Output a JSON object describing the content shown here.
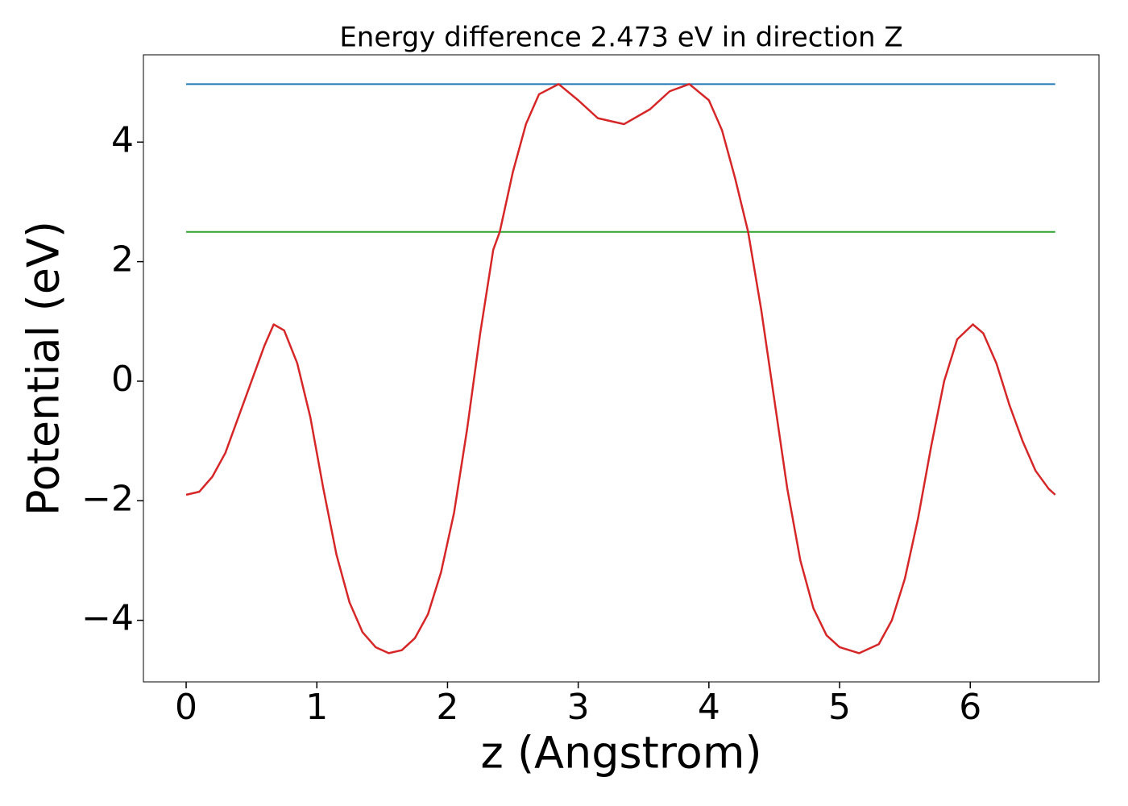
{
  "chart_data": {
    "type": "line",
    "title": "Energy difference 2.473 eV in direction Z",
    "xlabel": "z (Angstrom)",
    "ylabel": "Potential (eV)",
    "xlim": [
      -0.327,
      6.985
    ],
    "ylim": [
      -5.03,
      5.46
    ],
    "xticks": [
      0,
      1,
      2,
      3,
      4,
      5,
      6
    ],
    "yticks": [
      {
        "value": -4,
        "label": "−4"
      },
      {
        "value": -2,
        "label": "−2"
      },
      0,
      2,
      4
    ],
    "series": [
      {
        "color": "#1f77b4",
        "x": [
          0,
          6.65
        ],
        "values": [
          4.97,
          4.97
        ]
      },
      {
        "color": "#2ca02c",
        "x": [
          0,
          6.65
        ],
        "values": [
          2.497,
          2.497
        ]
      },
      {
        "color": "#d62728",
        "x": [
          0,
          0.1,
          0.2,
          0.3,
          0.4,
          0.5,
          0.6,
          0.67,
          0.75,
          0.85,
          0.95,
          1.05,
          1.15,
          1.25,
          1.35,
          1.45,
          1.55,
          1.65,
          1.75,
          1.85,
          1.95,
          2.05,
          2.15,
          2.25,
          2.35,
          2.4,
          2.5,
          2.6,
          2.7,
          2.85,
          3.0,
          3.15,
          3.35,
          3.55,
          3.7,
          3.85,
          4.0,
          4.1,
          4.2,
          4.3,
          4.4,
          4.5,
          4.6,
          4.7,
          4.8,
          4.9,
          5.0,
          5.15,
          5.3,
          5.4,
          5.5,
          5.6,
          5.7,
          5.8,
          5.9,
          6.02,
          6.1,
          6.2,
          6.3,
          6.4,
          6.5,
          6.6,
          6.65
        ],
        "values": [
          -1.9,
          -1.85,
          -1.6,
          -1.2,
          -0.6,
          0.0,
          0.6,
          0.95,
          0.85,
          0.3,
          -0.6,
          -1.8,
          -2.9,
          -3.7,
          -4.2,
          -4.45,
          -4.55,
          -4.5,
          -4.3,
          -3.9,
          -3.2,
          -2.2,
          -0.8,
          0.8,
          2.2,
          2.5,
          3.5,
          4.3,
          4.8,
          4.97,
          4.7,
          4.4,
          4.3,
          4.55,
          4.85,
          4.97,
          4.7,
          4.2,
          3.4,
          2.5,
          1.2,
          -0.3,
          -1.8,
          -3.0,
          -3.8,
          -4.25,
          -4.45,
          -4.55,
          -4.4,
          -4.0,
          -3.3,
          -2.3,
          -1.1,
          0.0,
          0.7,
          0.95,
          0.8,
          0.3,
          -0.4,
          -1.0,
          -1.5,
          -1.8,
          -1.9
        ]
      }
    ]
  }
}
